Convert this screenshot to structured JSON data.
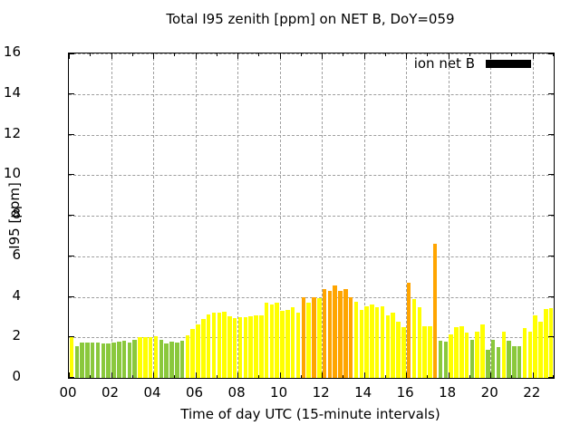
{
  "title": "Total I95 zenith [ppm] on NET B, DoY=059",
  "legend": {
    "label": "ion net B",
    "swatch_color": "#000000"
  },
  "chart_data": {
    "type": "bar",
    "title": "Total I95 zenith [ppm] on NET B, DoY=059",
    "xlabel": "Time of day UTC (15-minute intervals)",
    "ylabel": "I95 [ppm]",
    "ylim": [
      0,
      16
    ],
    "xlim_hours": [
      0,
      23
    ],
    "ytick_step": 2,
    "ytick_labels": [
      "0",
      "2",
      "4",
      "6",
      "8",
      "10",
      "12",
      "14",
      "16"
    ],
    "xtick_labels": [
      "00",
      "02",
      "04",
      "06",
      "08",
      "10",
      "12",
      "14",
      "16",
      "18",
      "20",
      "22"
    ],
    "grid": "dashed, at every 2 ppm and every 2 hours",
    "legend_position": "top-right inside",
    "legend_entries": [
      {
        "name": "ion net B",
        "color": "#000000"
      }
    ],
    "palette": {
      "g": "#8ac83c",
      "y": "#ffff00",
      "o": "#ffa500"
    },
    "bar_interval_minutes": 15,
    "points": [
      [
        "00:00",
        2.05,
        "y"
      ],
      [
        "00:15",
        1.55,
        "g"
      ],
      [
        "00:30",
        1.75,
        "g"
      ],
      [
        "00:45",
        1.75,
        "g"
      ],
      [
        "01:00",
        1.75,
        "g"
      ],
      [
        "01:15",
        1.75,
        "g"
      ],
      [
        "01:30",
        1.7,
        "g"
      ],
      [
        "01:45",
        1.7,
        "g"
      ],
      [
        "02:00",
        1.75,
        "g"
      ],
      [
        "02:15",
        1.8,
        "g"
      ],
      [
        "02:30",
        1.85,
        "g"
      ],
      [
        "02:45",
        1.75,
        "g"
      ],
      [
        "03:00",
        1.9,
        "g"
      ],
      [
        "03:15",
        2.0,
        "y"
      ],
      [
        "03:30",
        2.0,
        "y"
      ],
      [
        "03:45",
        2.0,
        "y"
      ],
      [
        "04:00",
        2.05,
        "y"
      ],
      [
        "04:15",
        1.9,
        "g"
      ],
      [
        "04:30",
        1.7,
        "g"
      ],
      [
        "04:45",
        1.8,
        "g"
      ],
      [
        "05:00",
        1.75,
        "g"
      ],
      [
        "05:15",
        1.85,
        "g"
      ],
      [
        "05:30",
        2.1,
        "y"
      ],
      [
        "05:45",
        2.4,
        "y"
      ],
      [
        "06:00",
        2.65,
        "y"
      ],
      [
        "06:15",
        2.9,
        "y"
      ],
      [
        "06:30",
        3.15,
        "y"
      ],
      [
        "06:45",
        3.2,
        "y"
      ],
      [
        "07:00",
        3.2,
        "y"
      ],
      [
        "07:15",
        3.25,
        "y"
      ],
      [
        "07:30",
        3.05,
        "y"
      ],
      [
        "07:45",
        2.95,
        "y"
      ],
      [
        "08:00",
        3.0,
        "y"
      ],
      [
        "08:15",
        3.0,
        "y"
      ],
      [
        "08:30",
        3.05,
        "y"
      ],
      [
        "08:45",
        3.1,
        "y"
      ],
      [
        "09:00",
        3.1,
        "y"
      ],
      [
        "09:15",
        3.7,
        "y"
      ],
      [
        "09:30",
        3.6,
        "y"
      ],
      [
        "09:45",
        3.7,
        "y"
      ],
      [
        "10:00",
        3.3,
        "y"
      ],
      [
        "10:15",
        3.35,
        "y"
      ],
      [
        "10:30",
        3.5,
        "y"
      ],
      [
        "10:45",
        3.2,
        "y"
      ],
      [
        "11:00",
        4.0,
        "o"
      ],
      [
        "11:15",
        3.7,
        "y"
      ],
      [
        "11:30",
        4.0,
        "o"
      ],
      [
        "11:45",
        3.95,
        "y"
      ],
      [
        "12:00",
        4.4,
        "o"
      ],
      [
        "12:15",
        4.3,
        "o"
      ],
      [
        "12:30",
        4.55,
        "o"
      ],
      [
        "12:45",
        4.3,
        "o"
      ],
      [
        "13:00",
        4.4,
        "o"
      ],
      [
        "13:15",
        4.0,
        "o"
      ],
      [
        "13:30",
        3.75,
        "y"
      ],
      [
        "13:45",
        3.35,
        "y"
      ],
      [
        "14:00",
        3.55,
        "y"
      ],
      [
        "14:15",
        3.6,
        "y"
      ],
      [
        "14:30",
        3.5,
        "y"
      ],
      [
        "14:45",
        3.55,
        "y"
      ],
      [
        "15:00",
        3.1,
        "y"
      ],
      [
        "15:15",
        3.2,
        "y"
      ],
      [
        "15:30",
        2.75,
        "y"
      ],
      [
        "15:45",
        2.5,
        "y"
      ],
      [
        "16:00",
        4.7,
        "o"
      ],
      [
        "16:15",
        3.9,
        "y"
      ],
      [
        "16:30",
        3.5,
        "y"
      ],
      [
        "16:45",
        2.55,
        "y"
      ],
      [
        "17:00",
        2.55,
        "y"
      ],
      [
        "17:15",
        6.6,
        "o"
      ],
      [
        "17:30",
        1.85,
        "g"
      ],
      [
        "17:45",
        1.8,
        "g"
      ],
      [
        "18:00",
        2.15,
        "y"
      ],
      [
        "18:15",
        2.5,
        "y"
      ],
      [
        "18:30",
        2.55,
        "y"
      ],
      [
        "18:45",
        2.25,
        "y"
      ],
      [
        "19:00",
        1.9,
        "g"
      ],
      [
        "19:15",
        2.3,
        "y"
      ],
      [
        "19:30",
        2.65,
        "y"
      ],
      [
        "19:45",
        1.4,
        "g"
      ],
      [
        "20:00",
        1.9,
        "g"
      ],
      [
        "20:15",
        1.5,
        "g"
      ],
      [
        "20:30",
        2.3,
        "y"
      ],
      [
        "20:45",
        1.85,
        "g"
      ],
      [
        "21:00",
        1.55,
        "g"
      ],
      [
        "21:15",
        1.55,
        "g"
      ],
      [
        "21:30",
        2.45,
        "y"
      ],
      [
        "21:45",
        2.3,
        "y"
      ],
      [
        "22:00",
        3.1,
        "y"
      ],
      [
        "22:15",
        2.75,
        "y"
      ],
      [
        "22:30",
        3.4,
        "y"
      ],
      [
        "22:45",
        3.45,
        "y"
      ]
    ]
  }
}
